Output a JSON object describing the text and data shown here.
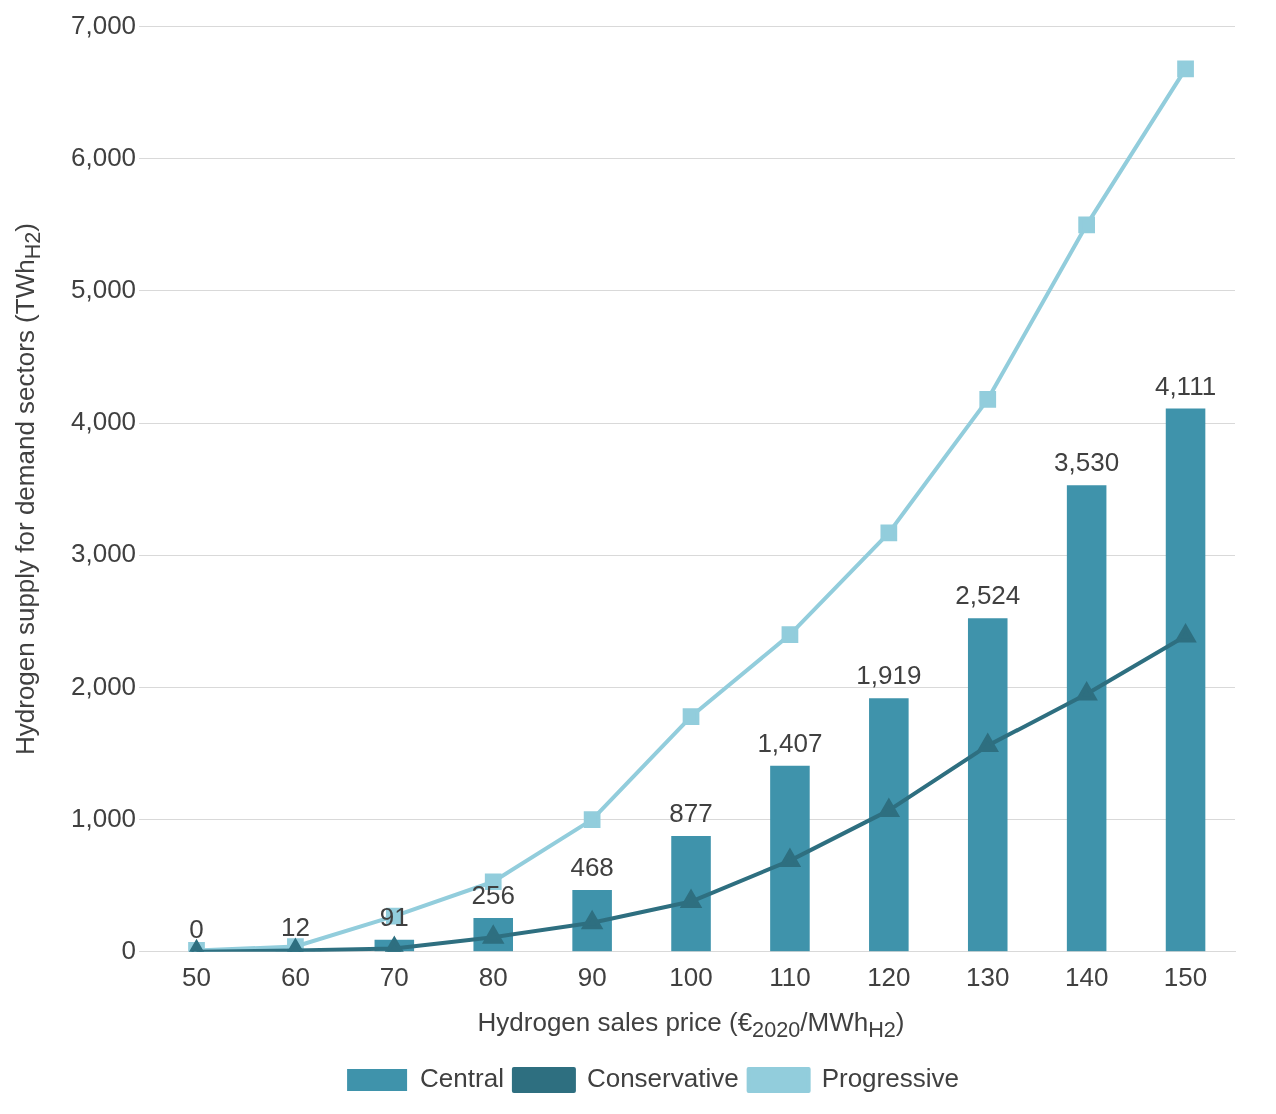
{
  "chart_data": {
    "type": "bar",
    "xlabel": "Hydrogen sales price (€$_{2020}$/MWh$_{H2}$)",
    "ylabel": "Hydrogen supply for demand sectors (TWh$_{H2}$)",
    "categories": [
      "50",
      "60",
      "70",
      "80",
      "90",
      "100",
      "110",
      "120",
      "130",
      "140",
      "150"
    ],
    "series": [
      {
        "name": "Central",
        "color": "#3f93ab",
        "values": [
          0,
          12,
          91,
          256,
          468,
          877,
          1407,
          1919,
          2524,
          3530,
          4111
        ],
        "value_labels": [
          "0",
          "12",
          "91",
          "256",
          "468",
          "877",
          "1,407",
          "1,919",
          "2,524",
          "3,530",
          "4,111"
        ]
      },
      {
        "name": "Conservative",
        "type": "line",
        "color": "#2e6f80",
        "marker": "triangle",
        "values": [
          0,
          10,
          25,
          110,
          220,
          380,
          690,
          1070,
          1560,
          1950,
          2390
        ]
      },
      {
        "name": "Progressive",
        "type": "line",
        "color": "#92cddc",
        "marker": "square",
        "values": [
          10,
          40,
          270,
          530,
          1000,
          1780,
          2400,
          3170,
          4180,
          5500,
          6680
        ]
      }
    ],
    "ylim": [
      0,
      7000
    ],
    "yticks": [
      0,
      {
        "value": 1000,
        "label": "1,000"
      },
      {
        "value": 2000,
        "label": "2,000"
      },
      {
        "value": 3000,
        "label": "3,000"
      },
      {
        "value": 4000,
        "label": "4,000"
      },
      {
        "value": 5000,
        "label": "5,000"
      },
      {
        "value": 6000,
        "label": "6,000"
      },
      {
        "value": 7000,
        "label": "7,000"
      }
    ],
    "grid": "y",
    "legend": "bottom"
  }
}
